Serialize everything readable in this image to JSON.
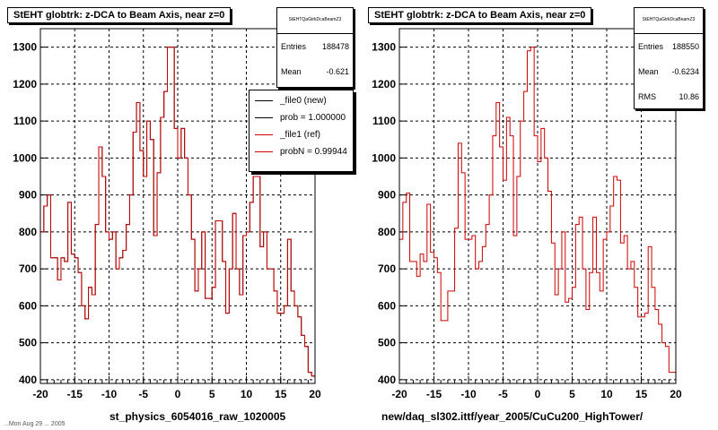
{
  "chart_data": [
    {
      "type": "histogram",
      "title": "StEHT globtrk: z-DCA to Beam Axis, near z=0",
      "xlim": [
        -20,
        20
      ],
      "ylim": [
        390,
        1350
      ],
      "xticks": [
        "-20",
        "-15",
        "-10",
        "-5",
        "0",
        "5",
        "10",
        "15",
        "20"
      ],
      "yticks": [
        "400",
        "500",
        "600",
        "700",
        "800",
        "900",
        "1000",
        "1100",
        "1200",
        "1300"
      ],
      "grid": true,
      "bin_width": 0.5,
      "x_start": -20,
      "stats": {
        "name": "StEHTQaGtrkDcaBeamZ3",
        "entries_label": "Entries",
        "entries": "188478",
        "mean_label": "Mean",
        "mean": "-0.621"
      },
      "legend": {
        "placement": "top-right",
        "entries": [
          {
            "label": "_file0 (new)",
            "color": "#000000"
          },
          {
            "label": "prob = 1.000000",
            "color": "#000000"
          },
          {
            "label": "_file1 (ref)",
            "color": "#cc0000"
          },
          {
            "label": "probN = 0.99944",
            "color": "#cc0000"
          }
        ]
      },
      "series": [
        {
          "name": "_file0 (new)",
          "color": "#000000",
          "values": [
            800,
            870,
            900,
            730,
            730,
            670,
            730,
            720,
            880,
            740,
            730,
            690,
            600,
            565,
            650,
            630,
            820,
            1030,
            950,
            800,
            780,
            800,
            700,
            730,
            750,
            820,
            900,
            1070,
            1150,
            1020,
            950,
            1100,
            1050,
            790,
            960,
            1110,
            1180,
            1300,
            1300,
            1080,
            1000,
            1080,
            1000,
            900,
            780,
            640,
            700,
            800,
            620,
            620,
            650,
            830,
            830,
            720,
            580,
            700,
            850,
            700,
            630,
            790,
            800,
            880,
            950,
            950,
            760,
            800,
            700,
            700,
            640,
            580,
            580,
            600,
            780,
            640,
            600,
            570,
            520,
            490,
            420,
            410
          ]
        },
        {
          "name": "_file1 (ref)",
          "color": "#cc0000",
          "values": [
            800,
            870,
            900,
            730,
            730,
            670,
            730,
            720,
            880,
            740,
            730,
            690,
            600,
            565,
            650,
            630,
            820,
            1030,
            950,
            800,
            780,
            800,
            700,
            730,
            750,
            820,
            900,
            1070,
            1150,
            1020,
            950,
            1100,
            1050,
            790,
            960,
            1110,
            1180,
            1300,
            1300,
            1080,
            1000,
            1080,
            1000,
            900,
            780,
            640,
            700,
            800,
            620,
            620,
            650,
            830,
            830,
            720,
            580,
            700,
            850,
            700,
            630,
            790,
            800,
            880,
            950,
            950,
            760,
            800,
            700,
            700,
            640,
            580,
            580,
            600,
            780,
            640,
            600,
            570,
            520,
            490,
            420,
            410
          ]
        }
      ],
      "footer": "st_physics_6054016_raw_1020005"
    },
    {
      "type": "histogram",
      "title": "StEHT globtrk: z-DCA to Beam Axis, near z=0",
      "xlim": [
        -20,
        20
      ],
      "ylim": [
        390,
        1350
      ],
      "xticks": [
        "-20",
        "-15",
        "-10",
        "-5",
        "0",
        "5",
        "10",
        "15",
        "20"
      ],
      "yticks": [
        "400",
        "500",
        "600",
        "700",
        "800",
        "900",
        "1000",
        "1100",
        "1200",
        "1300"
      ],
      "grid": true,
      "bin_width": 0.5,
      "x_start": -20,
      "stats": {
        "name": "StEHTQaGtrkDcaBeamZ3",
        "entries_label": "Entries",
        "entries": "188550",
        "mean_label": "Mean",
        "mean": "-0.6234",
        "rms_label": "RMS",
        "rms": "10.86"
      },
      "series": [
        {
          "name": "",
          "color": "#cc0000",
          "values": [
            780,
            880,
            905,
            720,
            720,
            680,
            740,
            720,
            875,
            745,
            730,
            690,
            560,
            560,
            640,
            640,
            810,
            1040,
            960,
            780,
            780,
            790,
            700,
            720,
            760,
            820,
            900,
            1060,
            1150,
            1030,
            940,
            1110,
            1060,
            790,
            950,
            1100,
            1180,
            1290,
            1300,
            1060,
            990,
            1080,
            1000,
            910,
            770,
            630,
            700,
            800,
            610,
            620,
            650,
            820,
            840,
            700,
            590,
            690,
            840,
            690,
            640,
            780,
            800,
            870,
            950,
            940,
            770,
            790,
            700,
            720,
            650,
            570,
            570,
            580,
            760,
            650,
            590,
            550,
            500,
            490,
            420,
            420
          ]
        }
      ],
      "footer": "new/daq_sl302.ittf/year_2005/CuCu200_HighTower/"
    }
  ],
  "footer_small": "...Mon Aug 29 ... 2005"
}
